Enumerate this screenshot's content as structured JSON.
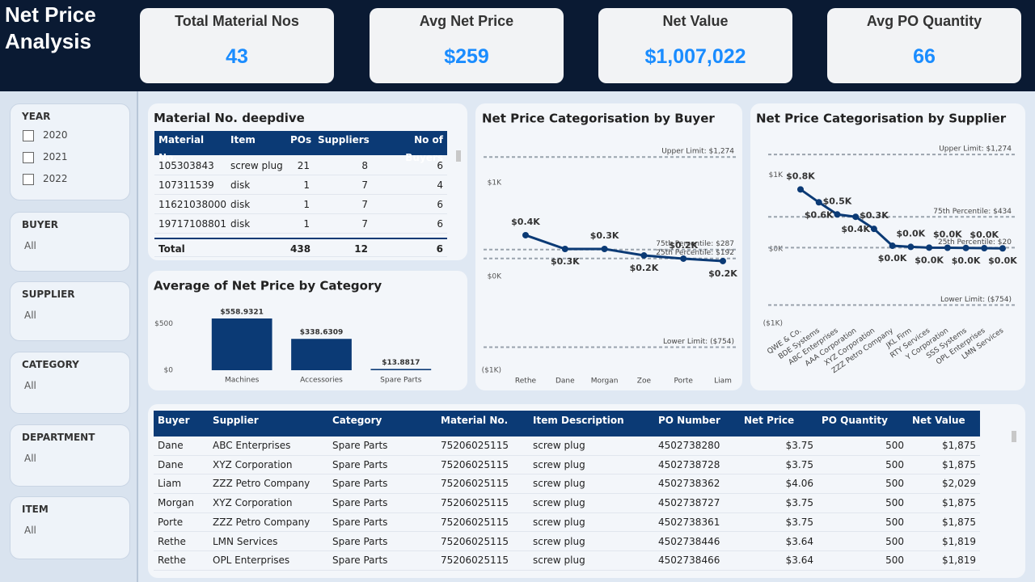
{
  "header": {
    "title": "Net Price Analysis"
  },
  "kpis": [
    {
      "label": "Total Material Nos",
      "value": "43"
    },
    {
      "label": "Avg Net Price",
      "value": "$259"
    },
    {
      "label": "Net Value",
      "value": "$1,007,022"
    },
    {
      "label": "Avg PO Quantity",
      "value": "66"
    }
  ],
  "filters": [
    {
      "label": "YEAR",
      "options": [
        "2020",
        "2021",
        "2022"
      ]
    },
    {
      "label": "BUYER",
      "value": "All"
    },
    {
      "label": "SUPPLIER",
      "value": "All"
    },
    {
      "label": "CATEGORY",
      "value": "All"
    },
    {
      "label": "DEPARTMENT",
      "value": "All"
    },
    {
      "label": "ITEM",
      "value": "All"
    }
  ],
  "deepdive": {
    "title": "Material No. deepdive",
    "columns": [
      "Material No.",
      "Item",
      "POs",
      "Suppliers",
      "No of Buyers"
    ],
    "rows": [
      [
        "105303843",
        "screw plug",
        "21",
        "8",
        "6"
      ],
      [
        "107311539",
        "disk",
        "1",
        "7",
        "4"
      ],
      [
        "11621038000",
        "disk",
        "1",
        "7",
        "6"
      ],
      [
        "19717108801",
        "disk",
        "1",
        "7",
        "6"
      ]
    ],
    "total": {
      "label": "Total",
      "values": [
        "438",
        "12",
        "6"
      ]
    }
  },
  "chart_data": [
    {
      "type": "bar",
      "title": "Average of Net Price by Category",
      "categories": [
        "Machines",
        "Accessories",
        "Spare Parts"
      ],
      "values": [
        558.9321,
        338.6309,
        13.8817
      ],
      "value_labels": [
        "$558.9321",
        "$338.6309",
        "$13.8817"
      ],
      "color": "#0b3a75",
      "ylim": [
        0,
        620
      ],
      "yticks": [
        {
          "value": 0,
          "label": "$0"
        },
        {
          "value": 500,
          "label": "$500"
        }
      ]
    },
    {
      "type": "line",
      "title": "Net Price Categorisation by Buyer",
      "categories": [
        "Rethe",
        "Dane",
        "Morgan",
        "Zoe",
        "Porte",
        "Liam"
      ],
      "values": [
        440,
        293,
        293,
        224,
        190,
        164
      ],
      "value_labels": [
        "$0.4K",
        "$0.3K",
        "$0.3K",
        "$0.2K",
        "$0.2K",
        "$0.2K"
      ],
      "color": "#0b3a75",
      "ylim": [
        -1000,
        1500
      ],
      "yticks": [
        {
          "value": -1000,
          "label": "($1K)"
        },
        {
          "value": 0,
          "label": "$0K"
        },
        {
          "value": 1000,
          "label": "$1K"
        }
      ],
      "reference_lines": [
        {
          "label": "Upper Limit: $1,274",
          "value": 1274
        },
        {
          "label": "75th Percentile: $287",
          "value": 287
        },
        {
          "label": "25th Percentile: $192",
          "value": 192
        },
        {
          "label": "Lower Limit: ($754)",
          "value": -754
        }
      ]
    },
    {
      "type": "line",
      "title": "Net Price Categorisation by Supplier",
      "categories": [
        "QWE & Co.",
        "BDE Systems",
        "ABC Enterprises",
        "AAA Corporation",
        "XYZ Corporation",
        "ZZZ Petro Company",
        "JKL Firm",
        "RTY Services",
        "Y Corporation",
        "SSS Systems",
        "OPL Enterprises",
        "LMN Services"
      ],
      "values": [
        804,
        630,
        467,
        435,
        272,
        45,
        30,
        20,
        18,
        15,
        12,
        10
      ],
      "value_labels": [
        "$0.8K",
        "$0.6K",
        "$0.5K",
        "$0.4K",
        "$0.3K",
        "$0.0K",
        "$0.0K",
        "$0.0K",
        "$0.0K",
        "$0.0K",
        "$0.0K",
        "$0.0K"
      ],
      "color": "#0b3a75",
      "ylim": [
        -1000,
        1450
      ],
      "yticks": [
        {
          "value": -1000,
          "label": "($1K)"
        },
        {
          "value": 0,
          "label": "$0K"
        },
        {
          "value": 1000,
          "label": "$1K"
        }
      ],
      "reference_lines": [
        {
          "label": "Upper Limit: $1,274",
          "value": 1274
        },
        {
          "label": "75th Percentile: $434",
          "value": 434
        },
        {
          "label": "25th Percentile: $20",
          "value": 20
        },
        {
          "label": "Lower Limit: ($754)",
          "value": -754
        }
      ]
    }
  ],
  "details": {
    "columns": [
      "Buyer",
      "Supplier",
      "Category",
      "Material No.",
      "Item Description",
      "PO Number",
      "Net Price",
      "PO Quantity",
      "Net Value"
    ],
    "rows": [
      [
        "Dane",
        "ABC Enterprises",
        "Spare Parts",
        "75206025115",
        "screw plug",
        "4502738280",
        "$3.75",
        "500",
        "$1,875"
      ],
      [
        "Dane",
        "XYZ Corporation",
        "Spare Parts",
        "75206025115",
        "screw plug",
        "4502738728",
        "$3.75",
        "500",
        "$1,875"
      ],
      [
        "Liam",
        "ZZZ Petro Company",
        "Spare Parts",
        "75206025115",
        "screw plug",
        "4502738362",
        "$4.06",
        "500",
        "$2,029"
      ],
      [
        "Morgan",
        "XYZ Corporation",
        "Spare Parts",
        "75206025115",
        "screw plug",
        "4502738727",
        "$3.75",
        "500",
        "$1,875"
      ],
      [
        "Porte",
        "ZZZ Petro Company",
        "Spare Parts",
        "75206025115",
        "screw plug",
        "4502738361",
        "$3.75",
        "500",
        "$1,875"
      ],
      [
        "Rethe",
        "LMN Services",
        "Spare Parts",
        "75206025115",
        "screw plug",
        "4502738446",
        "$3.64",
        "500",
        "$1,819"
      ],
      [
        "Rethe",
        "OPL Enterprises",
        "Spare Parts",
        "75206025115",
        "screw plug",
        "4502738466",
        "$3.64",
        "500",
        "$1,819"
      ]
    ]
  }
}
